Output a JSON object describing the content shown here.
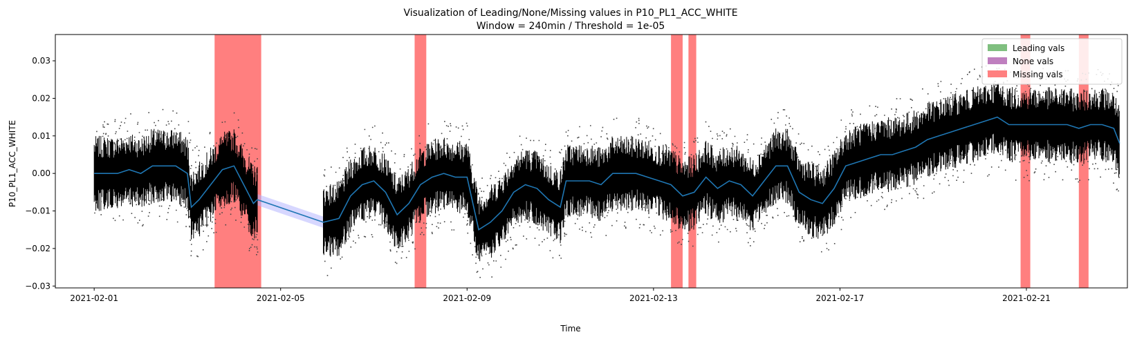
{
  "chart_data": {
    "type": "line",
    "title": "Visualization of Leading/None/Missing values in P10_PL1_ACC_WHITE",
    "subtitle": "Window = 240min / Threshold = 1e-05",
    "xlabel": "Time",
    "ylabel": "P10_PL1_ACC_WHITE",
    "xlim": [
      "2021-01-31T04:00",
      "2021-02-23T04:00"
    ],
    "ylim": [
      -0.0305,
      0.037
    ],
    "x_ticks": [
      "2021-02-01",
      "2021-02-05",
      "2021-02-09",
      "2021-02-13",
      "2021-02-17",
      "2021-02-21"
    ],
    "y_ticks": [
      -0.03,
      -0.02,
      -0.01,
      0.0,
      0.01,
      0.02,
      0.03
    ],
    "y_tick_labels": [
      "−0.03",
      "−0.02",
      "−0.01",
      "0.00",
      "0.01",
      "0.02",
      "0.03"
    ],
    "grid": false,
    "legend_position": "top-right",
    "legend": [
      {
        "label": "Leading vals",
        "color": "#7fbf7f"
      },
      {
        "label": "None vals",
        "color": "#bf7fbf"
      },
      {
        "label": "Missing vals",
        "color": "#ff8080"
      }
    ],
    "missing_intervals": [
      [
        "2021-02-03T14:00",
        "2021-02-04T14:00"
      ],
      [
        "2021-02-07T21:00",
        "2021-02-08T03:00"
      ],
      [
        "2021-02-13T09:00",
        "2021-02-13T15:00"
      ],
      [
        "2021-02-13T18:00",
        "2021-02-13T22:00"
      ],
      [
        "2021-02-20T21:00",
        "2021-02-21T02:00"
      ],
      [
        "2021-02-22T03:00",
        "2021-02-22T08:00"
      ]
    ],
    "colors": {
      "rolling_mean": "#1f77b4",
      "band": "#b0b0ff",
      "points": "#000000",
      "missing": "#ff0000"
    },
    "series": [
      {
        "points": [
          [
            "2021-02-01T00:00",
            0.0
          ],
          [
            "2021-02-01T06:00",
            0.0
          ],
          [
            "2021-02-01T12:00",
            0.0
          ],
          [
            "2021-02-01T18:00",
            0.001
          ],
          [
            "2021-02-02T00:00",
            0.0
          ],
          [
            "2021-02-02T06:00",
            0.002
          ],
          [
            "2021-02-02T12:00",
            0.002
          ],
          [
            "2021-02-02T18:00",
            0.002
          ],
          [
            "2021-02-03T00:00",
            0.0
          ],
          [
            "2021-02-03T02:00",
            -0.009
          ],
          [
            "2021-02-03T06:00",
            -0.007
          ],
          [
            "2021-02-03T12:00",
            -0.003
          ],
          [
            "2021-02-03T18:00",
            0.001
          ],
          [
            "2021-02-04T00:00",
            0.002
          ],
          [
            "2021-02-04T06:00",
            -0.004
          ],
          [
            "2021-02-04T10:00",
            -0.008
          ],
          [
            "2021-02-04T12:00",
            -0.007
          ],
          [
            "2021-02-05T22:00",
            -0.013
          ],
          [
            "2021-02-06T06:00",
            -0.012
          ],
          [
            "2021-02-06T12:00",
            -0.006
          ],
          [
            "2021-02-06T18:00",
            -0.003
          ],
          [
            "2021-02-07T00:00",
            -0.002
          ],
          [
            "2021-02-07T06:00",
            -0.005
          ],
          [
            "2021-02-07T12:00",
            -0.011
          ],
          [
            "2021-02-07T18:00",
            -0.008
          ],
          [
            "2021-02-08T00:00",
            -0.003
          ],
          [
            "2021-02-08T06:00",
            -0.001
          ],
          [
            "2021-02-08T12:00",
            -0.0
          ],
          [
            "2021-02-08T18:00",
            -0.001
          ],
          [
            "2021-02-09T00:00",
            -0.001
          ],
          [
            "2021-02-09T06:00",
            -0.015
          ],
          [
            "2021-02-09T12:00",
            -0.013
          ],
          [
            "2021-02-09T18:00",
            -0.01
          ],
          [
            "2021-02-10T00:00",
            -0.005
          ],
          [
            "2021-02-10T06:00",
            -0.003
          ],
          [
            "2021-02-10T12:00",
            -0.004
          ],
          [
            "2021-02-10T18:00",
            -0.007
          ],
          [
            "2021-02-11T00:00",
            -0.009
          ],
          [
            "2021-02-11T03:00",
            -0.002
          ],
          [
            "2021-02-11T09:00",
            -0.002
          ],
          [
            "2021-02-11T15:00",
            -0.002
          ],
          [
            "2021-02-11T21:00",
            -0.003
          ],
          [
            "2021-02-12T03:00",
            0.0
          ],
          [
            "2021-02-12T09:00",
            0.0
          ],
          [
            "2021-02-12T15:00",
            0.0
          ],
          [
            "2021-02-12T21:00",
            -0.001
          ],
          [
            "2021-02-13T03:00",
            -0.002
          ],
          [
            "2021-02-13T09:00",
            -0.003
          ],
          [
            "2021-02-13T15:00",
            -0.006
          ],
          [
            "2021-02-13T21:00",
            -0.005
          ],
          [
            "2021-02-14T03:00",
            -0.001
          ],
          [
            "2021-02-14T09:00",
            -0.004
          ],
          [
            "2021-02-14T15:00",
            -0.002
          ],
          [
            "2021-02-14T21:00",
            -0.003
          ],
          [
            "2021-02-15T03:00",
            -0.006
          ],
          [
            "2021-02-15T09:00",
            -0.002
          ],
          [
            "2021-02-15T15:00",
            0.002
          ],
          [
            "2021-02-15T21:00",
            0.002
          ],
          [
            "2021-02-16T03:00",
            -0.005
          ],
          [
            "2021-02-16T09:00",
            -0.007
          ],
          [
            "2021-02-16T15:00",
            -0.008
          ],
          [
            "2021-02-16T21:00",
            -0.004
          ],
          [
            "2021-02-17T03:00",
            0.002
          ],
          [
            "2021-02-17T09:00",
            0.003
          ],
          [
            "2021-02-17T15:00",
            0.004
          ],
          [
            "2021-02-17T21:00",
            0.005
          ],
          [
            "2021-02-18T03:00",
            0.005
          ],
          [
            "2021-02-18T09:00",
            0.006
          ],
          [
            "2021-02-18T15:00",
            0.007
          ],
          [
            "2021-02-18T21:00",
            0.009
          ],
          [
            "2021-02-19T03:00",
            0.01
          ],
          [
            "2021-02-19T09:00",
            0.011
          ],
          [
            "2021-02-19T15:00",
            0.012
          ],
          [
            "2021-02-19T21:00",
            0.013
          ],
          [
            "2021-02-20T03:00",
            0.014
          ],
          [
            "2021-02-20T09:00",
            0.015
          ],
          [
            "2021-02-20T15:00",
            0.013
          ],
          [
            "2021-02-20T21:00",
            0.013
          ],
          [
            "2021-02-21T03:00",
            0.013
          ],
          [
            "2021-02-21T09:00",
            0.013
          ],
          [
            "2021-02-21T15:00",
            0.013
          ],
          [
            "2021-02-21T21:00",
            0.013
          ],
          [
            "2021-02-22T03:00",
            0.012
          ],
          [
            "2021-02-22T09:00",
            0.013
          ],
          [
            "2021-02-22T15:00",
            0.013
          ],
          [
            "2021-02-22T21:00",
            0.012
          ],
          [
            "2021-02-23T00:00",
            0.008
          ]
        ]
      }
    ]
  }
}
